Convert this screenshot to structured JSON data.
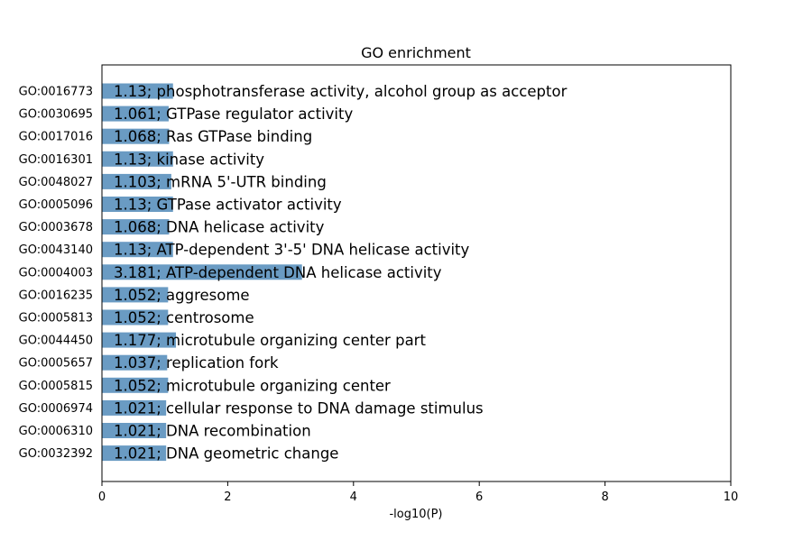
{
  "chart_data": {
    "type": "bar",
    "orientation": "horizontal",
    "title": "GO enrichment",
    "xlabel": "-log10(P)",
    "ylabel": "",
    "xlim": [
      0,
      10
    ],
    "xticks": [
      0,
      2,
      4,
      6,
      8,
      10
    ],
    "grid": false,
    "bar_color": "#6a9bc3",
    "categories": [
      "GO:0016773",
      "GO:0030695",
      "GO:0017016",
      "GO:0016301",
      "GO:0048027",
      "GO:0005096",
      "GO:0003678",
      "GO:0043140",
      "GO:0004003",
      "GO:0016235",
      "GO:0005813",
      "GO:0044450",
      "GO:0005657",
      "GO:0005815",
      "GO:0006974",
      "GO:0006310",
      "GO:0032392"
    ],
    "values": [
      1.13,
      1.061,
      1.068,
      1.13,
      1.103,
      1.13,
      1.068,
      1.13,
      3.181,
      1.052,
      1.052,
      1.177,
      1.037,
      1.052,
      1.021,
      1.021,
      1.021
    ],
    "bar_labels": [
      "1.13; phosphotransferase activity, alcohol group as acceptor",
      "1.061; GTPase regulator activity",
      "1.068; Ras GTPase binding",
      "1.13; kinase activity",
      "1.103; mRNA 5'-UTR binding",
      "1.13; GTPase activator activity",
      "1.068; DNA helicase activity",
      "1.13; ATP-dependent 3'-5' DNA helicase activity",
      "3.181; ATP-dependent DNA helicase activity",
      "1.052; aggresome",
      "1.052; centrosome",
      "1.177; microtubule organizing center part",
      "1.037; replication fork",
      "1.052; microtubule organizing center",
      "1.021; cellular response to DNA damage stimulus",
      "1.021; DNA recombination",
      "1.021; DNA geometric change"
    ]
  }
}
